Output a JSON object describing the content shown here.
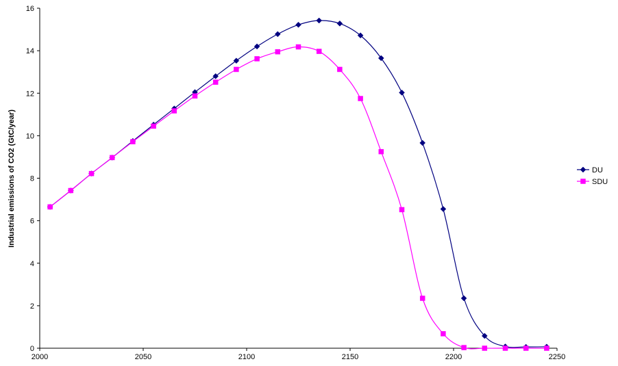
{
  "chart_data": {
    "type": "line",
    "title": "",
    "xlabel": "",
    "ylabel": "Industrial emissions of CO2 (GtC/year)",
    "xlim": [
      2000,
      2250
    ],
    "ylim": [
      0,
      16
    ],
    "xticks": [
      2000,
      2050,
      2100,
      2150,
      2200,
      2250
    ],
    "yticks": [
      0,
      2,
      4,
      6,
      8,
      10,
      12,
      14,
      16
    ],
    "grid": false,
    "legend_position": "right",
    "x": [
      2005,
      2015,
      2025,
      2035,
      2045,
      2055,
      2065,
      2075,
      2085,
      2095,
      2105,
      2115,
      2125,
      2135,
      2145,
      2155,
      2165,
      2175,
      2185,
      2195,
      2205,
      2215,
      2225,
      2235,
      2245
    ],
    "series": [
      {
        "name": "DU",
        "color": "#000080",
        "marker": "diamond",
        "values": [
          6.65,
          7.42,
          8.22,
          8.97,
          9.75,
          10.52,
          11.28,
          12.05,
          12.8,
          13.53,
          14.2,
          14.78,
          15.22,
          15.42,
          15.28,
          14.72,
          13.65,
          12.03,
          9.66,
          6.55,
          2.35,
          0.58,
          0.08,
          0.06,
          0.07
        ]
      },
      {
        "name": "SDU",
        "color": "#FF00FF",
        "marker": "square",
        "values": [
          6.65,
          7.42,
          8.22,
          8.97,
          9.72,
          10.45,
          11.17,
          11.87,
          12.52,
          13.12,
          13.62,
          13.95,
          14.18,
          13.97,
          13.12,
          11.75,
          9.25,
          6.52,
          2.35,
          0.68,
          0.03,
          0.0,
          0.0,
          0.0,
          0.0
        ]
      }
    ]
  }
}
